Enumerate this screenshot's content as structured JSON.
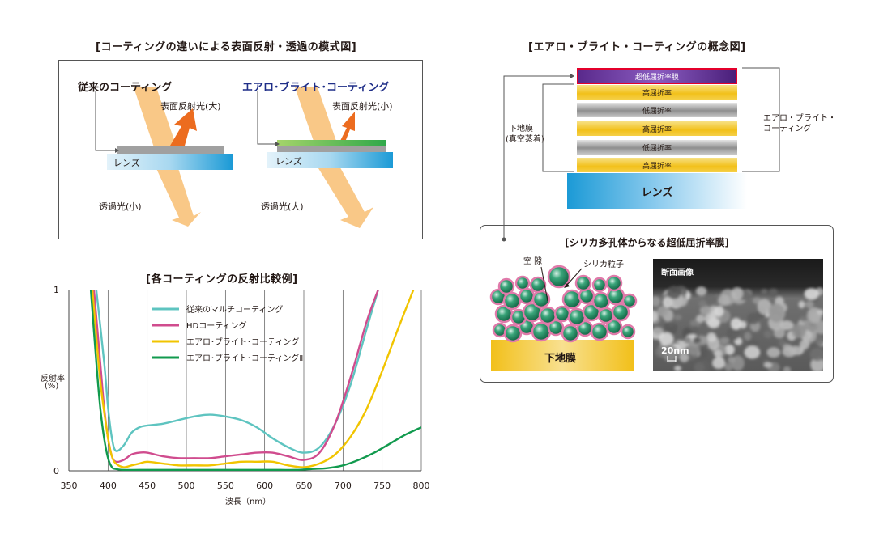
{
  "schematic": {
    "title": "[コーティングの違いによる表面反射・透過の模式図]",
    "left": {
      "heading": "従来のコーティング",
      "reflect": "表面反射光(大)",
      "lens": "レンズ",
      "transmit": "透過光(小)"
    },
    "right": {
      "heading": "エアロ･ブライト･コーティング",
      "reflect": "表面反射光(小)",
      "lens": "レンズ",
      "transmit": "透過光(大)"
    }
  },
  "chart": {
    "title": "[各コーティングの反射比較例]",
    "ylabel_line1": "反射率",
    "ylabel_line2": "(%)",
    "xlabel": "波長（nm）",
    "xticks": [
      "350",
      "400",
      "450",
      "500",
      "550",
      "600",
      "650",
      "700",
      "750",
      "800"
    ],
    "yticks": [
      "0",
      "1"
    ],
    "legend": [
      "従来のマルチコーティング",
      "HDコーティング",
      "エアロ･ブライト･コーティング",
      "エアロ･ブライト･コーティングⅡ"
    ]
  },
  "chart_data": {
    "type": "line",
    "title": "[各コーティングの反射比較例]",
    "xlabel": "波長（nm）",
    "ylabel": "反射率 (%)",
    "xlim": [
      350,
      800
    ],
    "ylim": [
      0,
      1
    ],
    "grid": true,
    "legend_position": "top-center",
    "series": [
      {
        "name": "従来のマルチコーティング",
        "color": "#5ec4c0",
        "x": [
          385,
          395,
          400,
          405,
          410,
          420,
          430,
          440,
          450,
          470,
          490,
          510,
          530,
          550,
          570,
          590,
          610,
          630,
          650,
          670,
          690,
          710,
          730,
          745
        ],
        "y": [
          1.0,
          0.6,
          0.35,
          0.18,
          0.11,
          0.14,
          0.21,
          0.24,
          0.25,
          0.26,
          0.28,
          0.3,
          0.31,
          0.3,
          0.28,
          0.24,
          0.18,
          0.13,
          0.1,
          0.13,
          0.26,
          0.48,
          0.78,
          1.0
        ]
      },
      {
        "name": "HDコーティング",
        "color": "#d04c8e",
        "x": [
          382,
          390,
          395,
          400,
          405,
          410,
          420,
          430,
          440,
          450,
          470,
          490,
          510,
          530,
          550,
          570,
          590,
          610,
          630,
          650,
          670,
          690,
          710,
          730,
          745
        ],
        "y": [
          1.0,
          0.6,
          0.35,
          0.18,
          0.08,
          0.05,
          0.06,
          0.09,
          0.1,
          0.1,
          0.08,
          0.07,
          0.07,
          0.07,
          0.08,
          0.09,
          0.1,
          0.1,
          0.08,
          0.06,
          0.1,
          0.26,
          0.52,
          0.82,
          1.0
        ]
      },
      {
        "name": "エアロ･ブライト･コーティング",
        "color": "#f1c400",
        "x": [
          380,
          390,
          400,
          405,
          410,
          420,
          430,
          440,
          450,
          470,
          490,
          510,
          530,
          550,
          570,
          590,
          610,
          630,
          650,
          670,
          690,
          710,
          730,
          750,
          770,
          790
        ],
        "y": [
          1.0,
          0.5,
          0.18,
          0.08,
          0.04,
          0.02,
          0.03,
          0.04,
          0.05,
          0.04,
          0.03,
          0.03,
          0.03,
          0.04,
          0.05,
          0.05,
          0.05,
          0.03,
          0.02,
          0.04,
          0.09,
          0.19,
          0.34,
          0.55,
          0.78,
          1.0
        ]
      },
      {
        "name": "エアロ･ブライト･コーティングⅡ",
        "color": "#119a4e",
        "x": [
          378,
          385,
          390,
          395,
          400,
          405,
          410,
          420,
          440,
          460,
          480,
          500,
          520,
          540,
          560,
          580,
          600,
          620,
          640,
          660,
          680,
          700,
          720,
          740,
          760,
          780,
          800
        ],
        "y": [
          1.0,
          0.6,
          0.35,
          0.18,
          0.07,
          0.02,
          0.01,
          0.005,
          0.005,
          0.005,
          0.005,
          0.005,
          0.005,
          0.005,
          0.005,
          0.005,
          0.005,
          0.005,
          0.005,
          0.01,
          0.015,
          0.03,
          0.06,
          0.1,
          0.15,
          0.2,
          0.24
        ]
      }
    ]
  },
  "concept": {
    "title": "[エアロ・ブライト・コーティングの概念図]",
    "layers": [
      "超低屈折率膜",
      "高屈折率",
      "低屈折率",
      "高屈折率",
      "低屈折率",
      "高屈折率"
    ],
    "lens": "レンズ",
    "left_bracket_line1": "下地膜",
    "left_bracket_line2": "(真空蒸着)",
    "right_bracket_line1": "エアロ・ブライト・",
    "right_bracket_line2": "コーティング"
  },
  "silica": {
    "title": "[シリカ多孔体からなる超低屈折率膜]",
    "void_label": "空 隙",
    "particle_label": "シリカ粒子",
    "base_label": "下地膜",
    "sem_title": "断面画像",
    "scale_label": "20nm"
  }
}
